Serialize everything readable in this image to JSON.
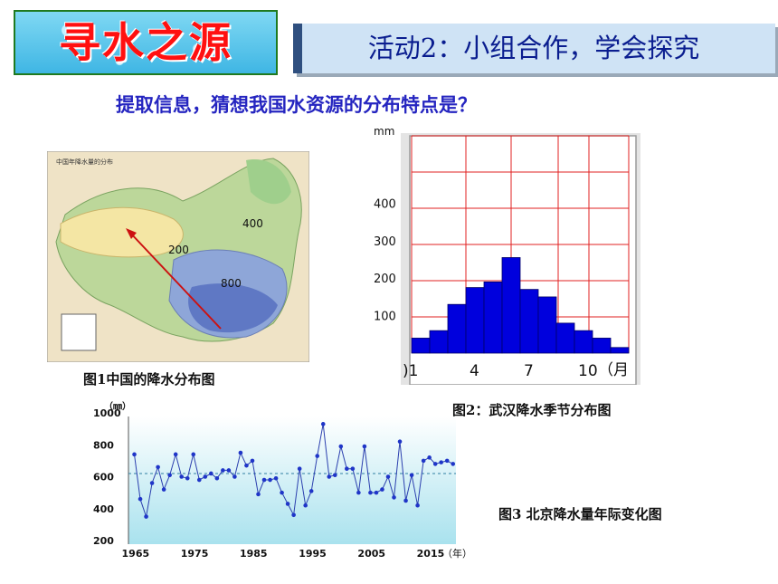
{
  "header": {
    "title": "寻水之源",
    "activity": "活动2：小组合作，学会探究",
    "question": "提取信息，猜想我国水资源的分布特点是？"
  },
  "map": {
    "caption": "图1中国的降水分布图",
    "inner_title": "中国年降水量的分布",
    "labels": [
      "200",
      "400",
      "800"
    ]
  },
  "wuhan": {
    "caption": "图2：武汉降水季节分布图",
    "chart_data": {
      "type": "bar",
      "unit": "mm",
      "ytick_labels": [
        "100",
        "200",
        "300",
        "400"
      ],
      "xtick_labels": [
        "1",
        "4",
        "7",
        "10"
      ],
      "x_unit": "（月",
      "ylim": [
        0,
        580
      ],
      "categories": [
        "1",
        "2",
        "3",
        "4",
        "5",
        "6",
        "7",
        "8",
        "9",
        "10",
        "11",
        "12"
      ],
      "values": [
        40,
        60,
        130,
        175,
        190,
        255,
        170,
        150,
        80,
        60,
        40,
        15
      ]
    }
  },
  "beijing": {
    "caption": "图3 北京降水量年际变化图",
    "chart_data": {
      "type": "line",
      "unit": "（㎜）",
      "x_unit": "（年）",
      "ylim": [
        200,
        1000
      ],
      "yticks": [
        200,
        400,
        600,
        800,
        1000
      ],
      "xtick_labels": [
        "1965",
        "1975",
        "1985",
        "1995",
        "2005",
        "2015"
      ],
      "mean": 620,
      "x": [
        1965,
        1966,
        1967,
        1968,
        1969,
        1970,
        1971,
        1972,
        1973,
        1974,
        1975,
        1976,
        1977,
        1978,
        1979,
        1980,
        1981,
        1982,
        1983,
        1984,
        1985,
        1986,
        1987,
        1988,
        1989,
        1990,
        1991,
        1992,
        1993,
        1994,
        1995,
        1996,
        1997,
        1998,
        1999,
        2000,
        2001,
        2002,
        2003,
        2004,
        2005,
        2006,
        2007,
        2008,
        2009,
        2010,
        2011,
        2012,
        2013,
        2014,
        2015,
        2016,
        2017,
        2018,
        2019
      ],
      "y": [
        740,
        460,
        350,
        560,
        660,
        520,
        610,
        740,
        600,
        590,
        740,
        580,
        600,
        620,
        590,
        640,
        640,
        600,
        750,
        670,
        700,
        490,
        580,
        580,
        590,
        500,
        430,
        360,
        650,
        420,
        510,
        730,
        930,
        600,
        610,
        790,
        650,
        650,
        500,
        790,
        500,
        500,
        520,
        600,
        470,
        820,
        450,
        610,
        420,
        700,
        720,
        680,
        690,
        700,
        680
      ]
    }
  }
}
